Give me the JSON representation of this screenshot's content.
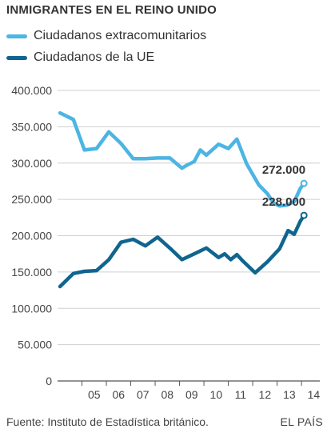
{
  "chart_data": {
    "type": "line",
    "title": "INMIGRANTES EN EL REINO UNIDO",
    "ylim": [
      0,
      400000
    ],
    "yticks": [
      0,
      50000,
      100000,
      150000,
      200000,
      250000,
      300000,
      350000,
      400000
    ],
    "ytick_labels": [
      "0",
      "50.000",
      "100.000",
      "150.000",
      "200.000",
      "250.000",
      "300.000",
      "350.000",
      "400.000"
    ],
    "xlim": [
      2004.0,
      2014.75
    ],
    "xticks": [
      2005,
      2006,
      2007,
      2008,
      2009,
      2010,
      2011,
      2012,
      2013,
      2014
    ],
    "xtick_labels": [
      "05",
      "06",
      "07",
      "08",
      "09",
      "10",
      "11",
      "12",
      "13",
      "14"
    ],
    "grid": "horizontal",
    "legend_position": "top-left",
    "series": [
      {
        "name": "Ciudadanos extracomunitarios",
        "color": "#4cb5e4",
        "end_label": "272.000",
        "x": [
          2004.1,
          2004.65,
          2005.1,
          2005.6,
          2006.1,
          2006.6,
          2007.1,
          2007.6,
          2008.1,
          2008.6,
          2009.1,
          2009.35,
          2009.6,
          2009.85,
          2010.1,
          2010.6,
          2011.0,
          2011.35,
          2011.75,
          2012.25,
          2012.6,
          2012.85,
          2013.1,
          2013.4,
          2013.7,
          2013.95,
          2014.1
        ],
        "y": [
          369000,
          360000,
          318000,
          320000,
          343000,
          327000,
          306000,
          306000,
          307000,
          307000,
          293000,
          298000,
          302000,
          318000,
          311000,
          326000,
          320000,
          333000,
          299000,
          270000,
          258000,
          245000,
          241000,
          242000,
          247000,
          265000,
          272000
        ]
      },
      {
        "name": "Ciudadanos de la UE",
        "color": "#10658f",
        "end_label": "228.000",
        "x": [
          2004.1,
          2004.65,
          2005.1,
          2005.6,
          2006.1,
          2006.6,
          2007.1,
          2007.6,
          2008.1,
          2008.6,
          2009.1,
          2009.6,
          2010.1,
          2010.6,
          2010.85,
          2011.1,
          2011.35,
          2011.6,
          2012.1,
          2012.6,
          2013.1,
          2013.45,
          2013.7,
          2013.95,
          2014.1
        ],
        "y": [
          130000,
          148000,
          151000,
          152000,
          167000,
          191000,
          195000,
          186000,
          198000,
          183000,
          167000,
          175000,
          183000,
          170000,
          175000,
          167000,
          174000,
          165000,
          149000,
          164000,
          182000,
          207000,
          202000,
          220000,
          228000
        ]
      }
    ],
    "source": "Fuente: Instituto de Estadística británico.",
    "brand": "EL PAÍS"
  }
}
